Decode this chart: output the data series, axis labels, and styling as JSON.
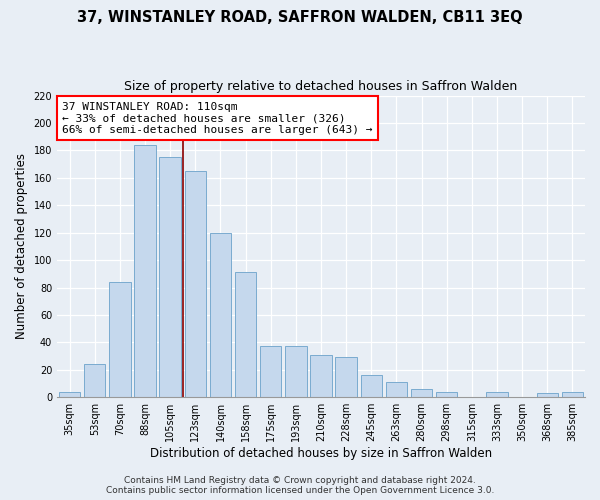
{
  "title": "37, WINSTANLEY ROAD, SAFFRON WALDEN, CB11 3EQ",
  "subtitle": "Size of property relative to detached houses in Saffron Walden",
  "xlabel": "Distribution of detached houses by size in Saffron Walden",
  "ylabel": "Number of detached properties",
  "categories": [
    "35sqm",
    "53sqm",
    "70sqm",
    "88sqm",
    "105sqm",
    "123sqm",
    "140sqm",
    "158sqm",
    "175sqm",
    "193sqm",
    "210sqm",
    "228sqm",
    "245sqm",
    "263sqm",
    "280sqm",
    "298sqm",
    "315sqm",
    "333sqm",
    "350sqm",
    "368sqm",
    "385sqm"
  ],
  "values": [
    4,
    24,
    84,
    184,
    175,
    165,
    120,
    91,
    37,
    37,
    31,
    29,
    16,
    11,
    6,
    4,
    0,
    4,
    0,
    3,
    4
  ],
  "bar_color": "#c5d8ed",
  "bar_edge_color": "#7aabcf",
  "ylim": [
    0,
    220
  ],
  "yticks": [
    0,
    20,
    40,
    60,
    80,
    100,
    120,
    140,
    160,
    180,
    200,
    220
  ],
  "property_label": "37 WINSTANLEY ROAD: 110sqm",
  "annotation_line1": "← 33% of detached houses are smaller (326)",
  "annotation_line2": "66% of semi-detached houses are larger (643) →",
  "vline_position": 4.5,
  "bg_color": "#e8eef5",
  "grid_color": "#ffffff",
  "footer1": "Contains HM Land Registry data © Crown copyright and database right 2024.",
  "footer2": "Contains public sector information licensed under the Open Government Licence 3.0.",
  "title_fontsize": 10.5,
  "subtitle_fontsize": 9,
  "xlabel_fontsize": 8.5,
  "ylabel_fontsize": 8.5,
  "tick_fontsize": 7,
  "annotation_fontsize": 8,
  "footer_fontsize": 6.5
}
